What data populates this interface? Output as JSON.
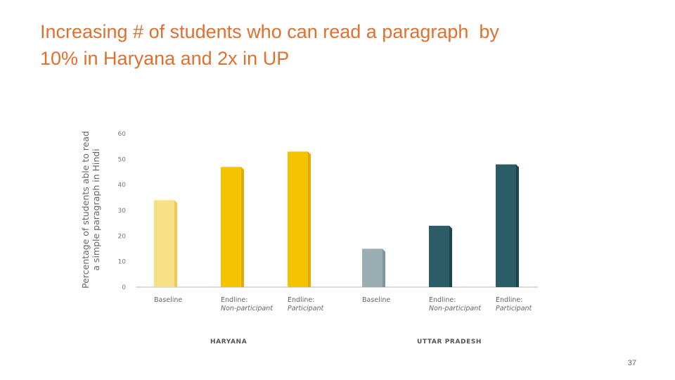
{
  "slide": {
    "title_lines": [
      "Increasing # of students who can read a paragraph  by",
      "10% in Haryana and 2x in UP"
    ],
    "page_number": "37"
  },
  "chart_data": {
    "type": "bar",
    "ylabel_lines": [
      "Percentage of students able to read",
      "a simple paragraph in Hindi"
    ],
    "ylim": [
      0,
      60
    ],
    "yticks": [
      0,
      10,
      20,
      30,
      40,
      50,
      60
    ],
    "grid": false,
    "legend": "none",
    "groups": [
      {
        "name": "HARYANA",
        "bars": [
          {
            "label_lines": [
              "Baseline"
            ],
            "value": 34,
            "color": "#f7df84",
            "side_color": "#eec95a"
          },
          {
            "label_lines": [
              "Endline:",
              "Non-participant"
            ],
            "value": 47,
            "color": "#f3c300",
            "side_color": "#e3aa00"
          },
          {
            "label_lines": [
              "Endline:",
              "Participant"
            ],
            "value": 53,
            "color": "#f3c300",
            "side_color": "#e3aa00"
          }
        ]
      },
      {
        "name": "UTTAR PRADESH",
        "bars": [
          {
            "label_lines": [
              "Baseline"
            ],
            "value": 15,
            "color": "#9aafb3",
            "side_color": "#7f979c"
          },
          {
            "label_lines": [
              "Endline:",
              "Non-participant"
            ],
            "value": 24,
            "color": "#2b5c67",
            "side_color": "#1d454e"
          },
          {
            "label_lines": [
              "Endline:",
              "Participant"
            ],
            "value": 48,
            "color": "#2b5c67",
            "side_color": "#1d454e"
          }
        ]
      }
    ]
  }
}
